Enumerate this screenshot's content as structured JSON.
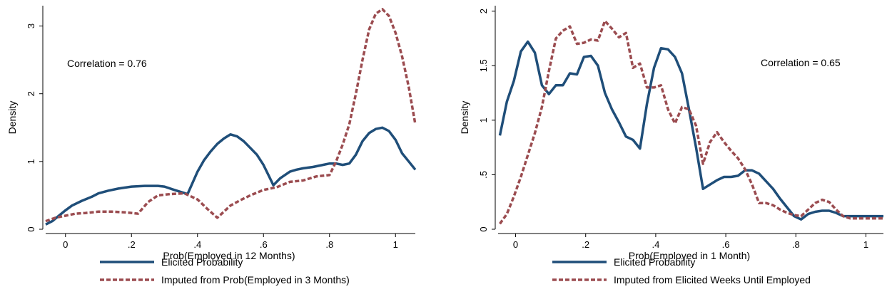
{
  "chart_data": [
    {
      "type": "line",
      "xlabel": "Prob(Employed in 12 Months)",
      "ylabel": "Density",
      "xlim": [
        -0.06,
        1.06
      ],
      "ylim": [
        0,
        3.3
      ],
      "xticks": [
        0,
        0.2,
        0.4,
        0.6,
        0.8,
        1
      ],
      "xtick_labels": [
        "0",
        ".2",
        ".4",
        ".6",
        ".8",
        "1"
      ],
      "yticks": [
        0,
        1,
        2,
        3
      ],
      "ytick_labels": [
        "0",
        "1",
        "2",
        "3"
      ],
      "annotation": "Correlation = 0.76",
      "grid": false,
      "legend_position": "bottom",
      "series": [
        {
          "name": "Elicited Probability",
          "color": "#1f4e79",
          "dash": "solid",
          "x": [
            -0.06,
            -0.04,
            -0.02,
            0,
            0.02,
            0.05,
            0.08,
            0.1,
            0.13,
            0.16,
            0.2,
            0.24,
            0.28,
            0.3,
            0.33,
            0.35,
            0.37,
            0.4,
            0.42,
            0.44,
            0.46,
            0.48,
            0.5,
            0.52,
            0.54,
            0.56,
            0.58,
            0.6,
            0.62,
            0.63,
            0.65,
            0.68,
            0.7,
            0.72,
            0.75,
            0.78,
            0.8,
            0.82,
            0.84,
            0.86,
            0.88,
            0.9,
            0.92,
            0.94,
            0.96,
            0.98,
            1,
            1.02,
            1.04,
            1.06
          ],
          "y": [
            0.07,
            0.12,
            0.2,
            0.28,
            0.35,
            0.42,
            0.48,
            0.53,
            0.57,
            0.6,
            0.63,
            0.64,
            0.64,
            0.63,
            0.58,
            0.55,
            0.52,
            0.85,
            1.02,
            1.15,
            1.26,
            1.34,
            1.4,
            1.37,
            1.3,
            1.2,
            1.1,
            0.95,
            0.75,
            0.65,
            0.75,
            0.85,
            0.88,
            0.9,
            0.92,
            0.95,
            0.97,
            0.97,
            0.95,
            0.97,
            1.1,
            1.3,
            1.42,
            1.48,
            1.5,
            1.45,
            1.32,
            1.12,
            1,
            0.88
          ]
        },
        {
          "name": "Imputed from Prob(Employed in 3 Months)",
          "color": "#9b4c50",
          "dash": "dashed",
          "x": [
            -0.06,
            -0.03,
            0,
            0.03,
            0.06,
            0.1,
            0.14,
            0.18,
            0.22,
            0.25,
            0.28,
            0.32,
            0.36,
            0.4,
            0.43,
            0.46,
            0.48,
            0.5,
            0.53,
            0.56,
            0.6,
            0.64,
            0.68,
            0.72,
            0.76,
            0.8,
            0.82,
            0.84,
            0.86,
            0.88,
            0.9,
            0.92,
            0.94,
            0.96,
            0.98,
            1,
            1.02,
            1.04,
            1.06
          ],
          "y": [
            0.12,
            0.17,
            0.2,
            0.23,
            0.24,
            0.26,
            0.26,
            0.25,
            0.23,
            0.4,
            0.5,
            0.52,
            0.53,
            0.44,
            0.3,
            0.17,
            0.26,
            0.35,
            0.43,
            0.5,
            0.58,
            0.62,
            0.7,
            0.72,
            0.78,
            0.8,
            1,
            1.25,
            1.55,
            2,
            2.5,
            2.95,
            3.18,
            3.25,
            3.15,
            2.9,
            2.55,
            2.1,
            1.55
          ]
        }
      ]
    },
    {
      "type": "line",
      "xlabel": "Prob(Employed in 1 Month)",
      "ylabel": "Density",
      "xlim": [
        -0.05,
        1.05
      ],
      "ylim": [
        0,
        2.05
      ],
      "xticks": [
        0,
        0.2,
        0.4,
        0.6,
        0.8,
        1
      ],
      "xtick_labels": [
        "0",
        ".2",
        ".4",
        ".6",
        ".8",
        "1"
      ],
      "yticks": [
        0,
        0.5,
        1,
        1.5,
        2
      ],
      "ytick_labels": [
        "0",
        ".5",
        "1",
        "1.5",
        "2"
      ],
      "annotation": "Correlation = 0.65",
      "grid": false,
      "legend_position": "bottom",
      "series": [
        {
          "name": "Elicited Probability",
          "color": "#1f4e79",
          "dash": "solid",
          "x": [
            -0.045,
            -0.025,
            -0.005,
            0.015,
            0.035,
            0.055,
            0.075,
            0.095,
            0.115,
            0.135,
            0.155,
            0.175,
            0.195,
            0.215,
            0.235,
            0.255,
            0.275,
            0.295,
            0.315,
            0.335,
            0.355,
            0.375,
            0.395,
            0.415,
            0.435,
            0.455,
            0.475,
            0.495,
            0.515,
            0.535,
            0.555,
            0.575,
            0.595,
            0.615,
            0.635,
            0.655,
            0.675,
            0.695,
            0.715,
            0.735,
            0.755,
            0.775,
            0.795,
            0.815,
            0.835,
            0.855,
            0.875,
            0.895,
            0.915,
            0.935,
            0.955,
            0.975,
            0.995,
            1.015,
            1.035,
            1.05
          ],
          "y": [
            0.86,
            1.17,
            1.36,
            1.63,
            1.72,
            1.62,
            1.32,
            1.24,
            1.32,
            1.32,
            1.43,
            1.42,
            1.58,
            1.59,
            1.5,
            1.25,
            1.1,
            0.98,
            0.85,
            0.82,
            0.74,
            1.15,
            1.48,
            1.66,
            1.65,
            1.58,
            1.43,
            1.1,
            0.75,
            0.37,
            0.41,
            0.45,
            0.48,
            0.48,
            0.49,
            0.54,
            0.54,
            0.51,
            0.44,
            0.37,
            0.28,
            0.2,
            0.12,
            0.09,
            0.14,
            0.16,
            0.17,
            0.17,
            0.15,
            0.12,
            0.12,
            0.12,
            0.12,
            0.12,
            0.12,
            0.12
          ]
        },
        {
          "name": "Imputed from Elicited Weeks Until Employed",
          "color": "#9b4c50",
          "dash": "dashed",
          "x": [
            -0.045,
            -0.025,
            -0.005,
            0.015,
            0.035,
            0.055,
            0.075,
            0.095,
            0.115,
            0.135,
            0.155,
            0.175,
            0.195,
            0.215,
            0.235,
            0.255,
            0.275,
            0.295,
            0.315,
            0.335,
            0.355,
            0.375,
            0.395,
            0.415,
            0.435,
            0.455,
            0.475,
            0.495,
            0.515,
            0.535,
            0.555,
            0.575,
            0.595,
            0.615,
            0.635,
            0.655,
            0.675,
            0.695,
            0.715,
            0.735,
            0.755,
            0.775,
            0.795,
            0.815,
            0.835,
            0.855,
            0.875,
            0.895,
            0.915,
            0.935,
            0.955,
            0.975,
            0.995,
            1.015,
            1.035,
            1.05
          ],
          "y": [
            0.05,
            0.14,
            0.3,
            0.48,
            0.68,
            0.88,
            1.12,
            1.45,
            1.75,
            1.82,
            1.86,
            1.7,
            1.71,
            1.74,
            1.73,
            1.91,
            1.84,
            1.76,
            1.8,
            1.48,
            1.52,
            1.3,
            1.3,
            1.32,
            1.1,
            0.97,
            1.12,
            1.1,
            0.95,
            0.6,
            0.8,
            0.89,
            0.8,
            0.72,
            0.65,
            0.55,
            0.41,
            0.24,
            0.24,
            0.22,
            0.18,
            0.15,
            0.13,
            0.12,
            0.18,
            0.24,
            0.27,
            0.25,
            0.18,
            0.12,
            0.1,
            0.1,
            0.1,
            0.1,
            0.1,
            0.1
          ]
        }
      ]
    }
  ]
}
